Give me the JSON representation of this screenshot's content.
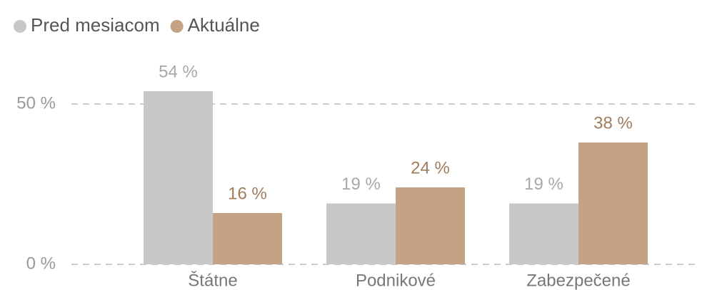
{
  "chart_data": {
    "type": "bar",
    "categories": [
      "Štátne",
      "Podnikové",
      "Zabezpečené"
    ],
    "series": [
      {
        "name": "Pred mesiacom",
        "color": "#c8c8c8",
        "values": [
          54,
          19,
          19
        ],
        "value_labels": [
          "54 %",
          "19 %",
          "19 %"
        ]
      },
      {
        "name": "Aktuálne",
        "color": "#c4a385",
        "values": [
          16,
          24,
          38
        ],
        "value_labels": [
          "16 %",
          "24 %",
          "38 %"
        ]
      }
    ],
    "ylim": [
      0,
      60
    ],
    "yticks": [
      {
        "value": 0,
        "label": "0 %"
      },
      {
        "value": 50,
        "label": "50 %"
      }
    ],
    "grid": true,
    "legend": "top-left"
  }
}
